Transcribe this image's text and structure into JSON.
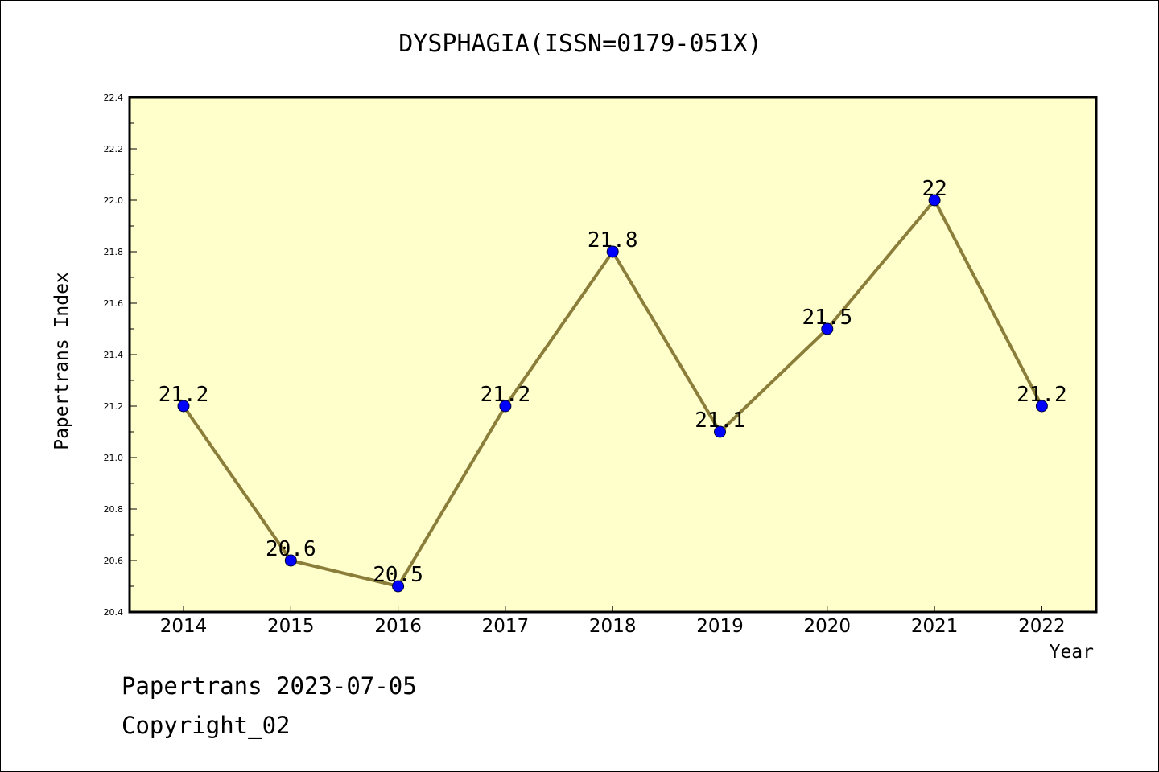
{
  "chart_data": {
    "type": "line",
    "title": "DYSPHAGIA(ISSN=0179-051X)",
    "xlabel": "Year",
    "ylabel": "Papertrans Index",
    "categories": [
      "2014",
      "2015",
      "2016",
      "2017",
      "2018",
      "2019",
      "2020",
      "2021",
      "2022"
    ],
    "series": [
      {
        "values": [
          21.2,
          20.6,
          20.5,
          21.2,
          21.8,
          21.1,
          21.5,
          22,
          21.2
        ]
      }
    ],
    "data_labels": [
      "21.2",
      "20.6",
      "20.5",
      "21.2",
      "21.8",
      "21.1",
      "21.5",
      "22",
      "21.2"
    ],
    "ylim": [
      20.4,
      22.4
    ],
    "yticks": [
      "20.4",
      "20.6",
      "20.8",
      "21.0",
      "21.2",
      "21.4",
      "21.6",
      "21.8",
      "22.0",
      "22.2",
      "22.4"
    ],
    "grid": false,
    "colors": {
      "plot_background": "#ffffcc",
      "line": "#8b7d3a",
      "marker": "#0000ff"
    }
  },
  "footer": {
    "date_line": "Papertrans 2023-07-05",
    "copyright": "Copyright_02"
  }
}
